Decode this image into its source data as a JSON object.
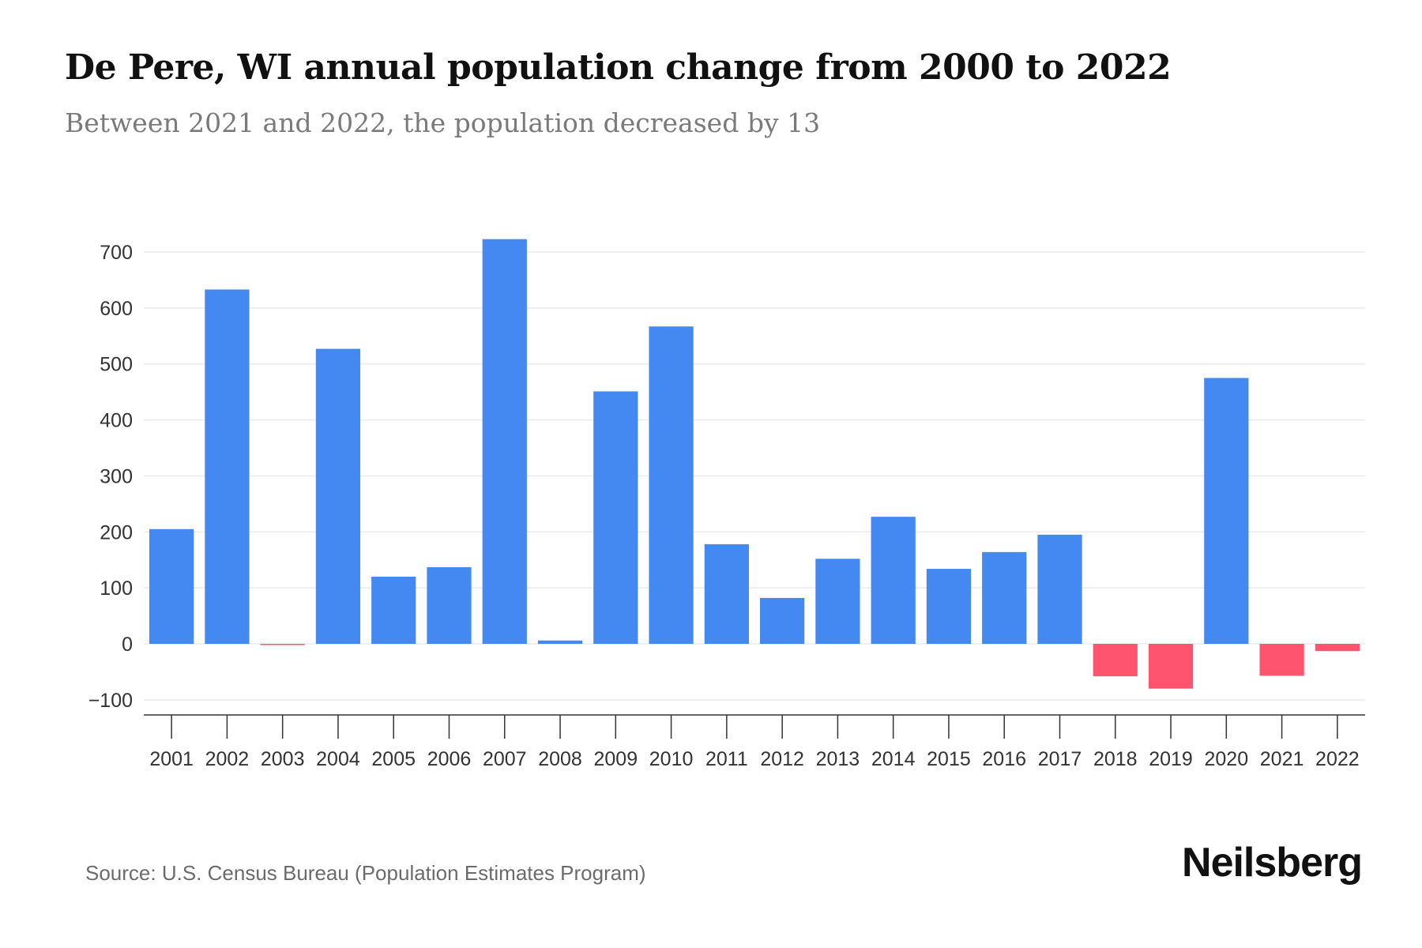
{
  "chart_data": {
    "type": "bar",
    "title": "De Pere, WI annual population change from 2000 to 2022",
    "subtitle": "Between 2021 and 2022, the population decreased by 13",
    "categories": [
      "2001",
      "2002",
      "2003",
      "2004",
      "2005",
      "2006",
      "2007",
      "2008",
      "2009",
      "2010",
      "2011",
      "2012",
      "2013",
      "2014",
      "2015",
      "2016",
      "2017",
      "2018",
      "2019",
      "2020",
      "2021",
      "2022"
    ],
    "values": [
      205,
      633,
      -2,
      527,
      120,
      137,
      723,
      6,
      451,
      567,
      178,
      82,
      152,
      227,
      134,
      164,
      195,
      -58,
      -80,
      475,
      -57,
      -13
    ],
    "xlabel": "",
    "ylabel": "",
    "ylim": [
      -100,
      700
    ],
    "yticks": [
      700,
      600,
      500,
      400,
      300,
      200,
      100,
      0,
      -100
    ],
    "ytick_labels": [
      "700",
      "600",
      "500",
      "400",
      "300",
      "200",
      "100",
      "0",
      "−100"
    ],
    "grid": true,
    "legend": "none",
    "colors": {
      "positive": "#4488f2",
      "negative": "#ff5470",
      "grid": "#ebebeb",
      "axis": "#333333"
    }
  },
  "footer": {
    "source": "Source: U.S. Census Bureau (Population Estimates Program)",
    "brand": "Neilsberg"
  }
}
